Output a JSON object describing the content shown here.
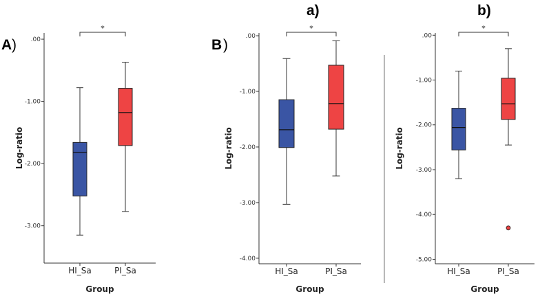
{
  "figure_labels": {
    "panel_A": "A",
    "panel_B": "B",
    "paren": ")",
    "subpanel_a": "a)",
    "subpanel_b": "b)"
  },
  "colors": {
    "HI_Sa": "#3a55a4",
    "PI_Sa": "#ee4444",
    "outlier": "#ee4444"
  },
  "chart_data": [
    {
      "id": "A",
      "type": "box",
      "xlabel": "Group",
      "ylabel": "Log-ratio",
      "ylim": [
        -3.6,
        0.1
      ],
      "yticks": [
        0,
        -1,
        -2,
        -3
      ],
      "ytick_labels": [
        ".00",
        "-1.00",
        "-2.00",
        "-3.00"
      ],
      "categories": [
        "HI_Sa",
        "PI_Sa"
      ],
      "series": [
        {
          "name": "HI_Sa",
          "min": -3.15,
          "q1": -2.52,
          "median": -1.82,
          "q3": -1.66,
          "max": -0.78,
          "outliers": []
        },
        {
          "name": "PI_Sa",
          "min": -2.77,
          "q1": -1.71,
          "median": -1.18,
          "q3": -0.79,
          "max": -0.37,
          "outliers": []
        }
      ],
      "significance": "*"
    },
    {
      "id": "Ba",
      "type": "box",
      "xlabel": "Group",
      "ylabel": "Log-ratio",
      "ylim": [
        -4.1,
        0.05
      ],
      "yticks": [
        0,
        -1,
        -2,
        -3,
        -4
      ],
      "ytick_labels": [
        ".00",
        "-1.00",
        "-2.00",
        "-3.00",
        "-4.00"
      ],
      "categories": [
        "HI_Sa",
        "PI_Sa"
      ],
      "series": [
        {
          "name": "HI_Sa",
          "min": -3.03,
          "q1": -2.01,
          "median": -1.69,
          "q3": -1.15,
          "max": -0.41,
          "outliers": []
        },
        {
          "name": "PI_Sa",
          "min": -2.52,
          "q1": -1.68,
          "median": -1.22,
          "q3": -0.53,
          "max": -0.09,
          "outliers": []
        }
      ],
      "significance": "*"
    },
    {
      "id": "Bb",
      "type": "box",
      "xlabel": "Group",
      "ylabel": "Log-ratio",
      "ylim": [
        -5.1,
        0.05
      ],
      "yticks": [
        0,
        -1,
        -2,
        -3,
        -4,
        -5
      ],
      "ytick_labels": [
        ".00",
        "-1.00",
        "-2.00",
        "-3.00",
        "-4.00",
        "-5.00"
      ],
      "categories": [
        "HI_Sa",
        "PI_Sa"
      ],
      "series": [
        {
          "name": "HI_Sa",
          "min": -3.2,
          "q1": -2.56,
          "median": -2.06,
          "q3": -1.63,
          "max": -0.8,
          "outliers": []
        },
        {
          "name": "PI_Sa",
          "min": -2.45,
          "q1": -1.88,
          "median": -1.53,
          "q3": -0.96,
          "max": -0.3,
          "outliers": [
            -4.3
          ]
        }
      ],
      "significance": "*"
    }
  ]
}
